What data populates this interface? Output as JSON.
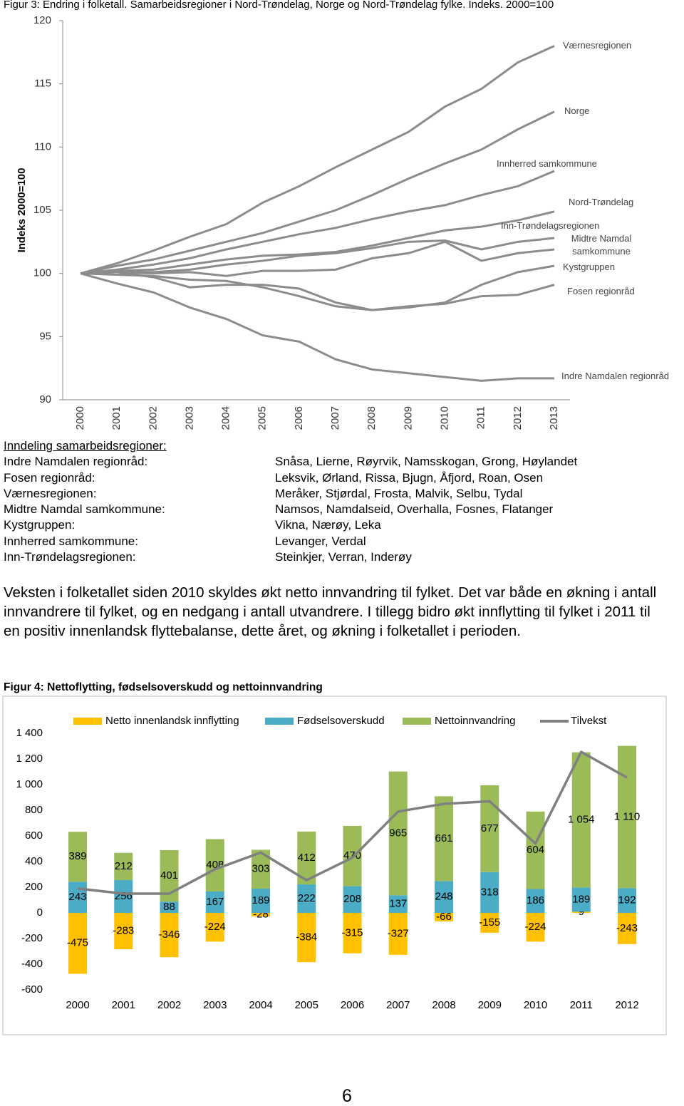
{
  "chart_data": [
    {
      "type": "line",
      "title": "Figur 3: Endring i folketall. Samarbeidsregioner i Nord-Trøndelag, Norge og Nord-Trøndelag fylke. Indeks. 2000=100",
      "y_label": "Indeks 2000=100",
      "categories": [
        "2000",
        "2001",
        "2002",
        "2003",
        "2004",
        "2005",
        "2006",
        "2007",
        "2008",
        "2009",
        "2010",
        "2011",
        "2012",
        "2013"
      ],
      "ylim": [
        90,
        120
      ],
      "yticks": [
        90,
        95,
        100,
        105,
        110,
        115,
        120
      ],
      "series": [
        {
          "name": "Værnesregionen",
          "color": "#8c8c8c",
          "values": [
            100,
            100.8,
            101.8,
            102.9,
            103.9,
            105.6,
            106.9,
            108.4,
            109.8,
            111.2,
            113.2,
            114.6,
            116.7,
            118.0
          ]
        },
        {
          "name": "Norge",
          "color": "#8c8c8c",
          "values": [
            100,
            100.6,
            101.1,
            101.8,
            102.5,
            103.2,
            104.1,
            105,
            106.2,
            107.5,
            108.7,
            109.8,
            111.4,
            112.8
          ]
        },
        {
          "name": "Innherred samkommune",
          "color": "#8c8c8c",
          "values": [
            100,
            100.3,
            100.7,
            101.2,
            101.9,
            102.5,
            103.1,
            103.6,
            104.3,
            104.9,
            105.4,
            106.2,
            106.9,
            108.1
          ]
        },
        {
          "name": "Nord-Trøndelag",
          "color": "#8c8c8c",
          "values": [
            100,
            100.2,
            100.3,
            100.7,
            101.1,
            101.4,
            101.5,
            101.7,
            102.2,
            102.8,
            103.4,
            103.7,
            104.2,
            104.9
          ]
        },
        {
          "name": "Inn-Trøndelagsregionen",
          "color": "#8c8c8c",
          "values": [
            100,
            100.1,
            100.1,
            100.3,
            100.7,
            101.0,
            101.4,
            101.6,
            102.0,
            102.5,
            102.6,
            101.9,
            102.5,
            102.8
          ]
        },
        {
          "name": "Midtre Namdal samkommune",
          "color": "#8c8c8c",
          "values": [
            100,
            100.1,
            100,
            100.1,
            99.8,
            100.2,
            100.2,
            100.3,
            101.2,
            101.6,
            102.5,
            101.0,
            101.6,
            101.9
          ]
        },
        {
          "name": "Kystgruppen",
          "color": "#8c8c8c",
          "values": [
            100,
            100.1,
            99.7,
            98.9,
            99.1,
            99.1,
            98.8,
            97.7,
            97.1,
            97.3,
            97.7,
            99.1,
            100.1,
            100.6
          ]
        },
        {
          "name": "Fosen regionråd",
          "color": "#8c8c8c",
          "values": [
            100,
            99.9,
            99.8,
            99.5,
            99.4,
            98.9,
            98.2,
            97.4,
            97.1,
            97.4,
            97.6,
            98.2,
            98.3,
            99.1
          ]
        },
        {
          "name": "Indre Namdalen regionråd",
          "color": "#8c8c8c",
          "values": [
            100,
            99.2,
            98.5,
            97.3,
            96.4,
            95.1,
            94.6,
            93.2,
            92.4,
            92.1,
            91.8,
            91.5,
            91.7,
            91.7
          ]
        }
      ]
    },
    {
      "type": "bar",
      "stacked": true,
      "title": "Figur 4: Nettoflytting, fødselsoverskudd og nettoinnvandring",
      "categories": [
        "2000",
        "2001",
        "2002",
        "2003",
        "2004",
        "2005",
        "2006",
        "2007",
        "2008",
        "2009",
        "2010",
        "2011",
        "2012"
      ],
      "ylim": [
        -600,
        1400
      ],
      "yticks": [
        -600,
        -400,
        -200,
        0,
        200,
        400,
        600,
        800,
        {
          "value": 1000,
          "label": "1 000"
        },
        {
          "value": 1200,
          "label": "1 200"
        },
        {
          "value": 1400,
          "label": "1 400"
        }
      ],
      "series": [
        {
          "name": "Netto innenlandsk innflytting",
          "color": "#ffc000",
          "values": [
            -475,
            -283,
            -346,
            -224,
            -28,
            -384,
            -315,
            -327,
            -66,
            -155,
            -224,
            9,
            -243
          ]
        },
        {
          "name": "Fødselsoverskudd",
          "color": "#4bacc6",
          "values": [
            243,
            256,
            88,
            167,
            189,
            222,
            208,
            137,
            248,
            318,
            186,
            189,
            192
          ]
        },
        {
          "name": "Nettoinnvandring",
          "color": "#9bbb59",
          "values": [
            389,
            212,
            401,
            408,
            303,
            412,
            470,
            965,
            661,
            677,
            604,
            1054,
            1110
          ],
          "value_labels": [
            "389",
            "212",
            "401",
            "408",
            "303",
            "412",
            "470",
            "965",
            "661",
            "677",
            "604",
            "1 054",
            "1 110"
          ]
        },
        {
          "name": "Tilvekst",
          "type": "line",
          "color": "#808080",
          "values": [
            190,
            150,
            150,
            340,
            470,
            255,
            430,
            790,
            850,
            870,
            540,
            1255,
            1055
          ]
        }
      ]
    }
  ],
  "region_table": {
    "title": "Inndeling samarbeidsregioner:",
    "rows": [
      [
        "Indre Namdalen regionråd:",
        "Snåsa, Lierne, Røyrvik, Namsskogan, Grong, Høylandet"
      ],
      [
        "Fosen regionråd:",
        "Leksvik, Ørland, Rissa, Bjugn, Åfjord, Roan, Osen"
      ],
      [
        "Værnesregionen:",
        "Meråker, Stjørdal, Frosta, Malvik, Selbu, Tydal"
      ],
      [
        "Midtre Namdal samkommune:",
        "Namsos, Namdalseid, Overhalla, Fosnes, Flatanger"
      ],
      [
        "Kystgruppen:",
        "Vikna, Nærøy, Leka"
      ],
      [
        "Innherred samkommune:",
        "Levanger, Verdal"
      ],
      [
        "Inn-Trøndelagsregionen:",
        "Steinkjer, Verran, Inderøy"
      ]
    ]
  },
  "paragraph": "Veksten i folketallet siden 2010 skyldes økt netto innvandring til fylket. Det var både en økning i antall innvandrere til fylket, og en nedgang i antall utvandrere. I tillegg bidro økt innflytting til fylket i 2011 til en positiv innenlandsk flyttebalanse, dette året, og økning i folketallet i perioden.",
  "page_number": "6"
}
